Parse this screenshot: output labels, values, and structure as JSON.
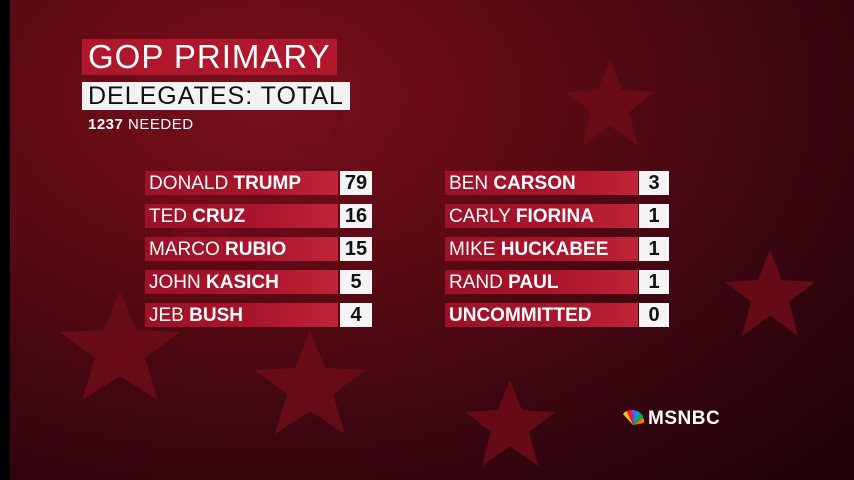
{
  "header": {
    "title": "GOP PRIMARY",
    "subtitle": "DELEGATES: TOTAL",
    "needed_number": "1237",
    "needed_label": "NEEDED"
  },
  "left_column": [
    {
      "first": "DONALD ",
      "last": "TRUMP",
      "delegates": "79"
    },
    {
      "first": "TED ",
      "last": "CRUZ",
      "delegates": "16"
    },
    {
      "first": "MARCO ",
      "last": "RUBIO",
      "delegates": "15"
    },
    {
      "first": "JOHN ",
      "last": "KASICH",
      "delegates": "5"
    },
    {
      "first": "JEB ",
      "last": "BUSH",
      "delegates": "4"
    }
  ],
  "right_column": [
    {
      "first": "BEN ",
      "last": "CARSON",
      "delegates": "3"
    },
    {
      "first": "CARLY ",
      "last": "FIORINA",
      "delegates": "1"
    },
    {
      "first": "MIKE ",
      "last": "HUCKABEE",
      "delegates": "1"
    },
    {
      "first": "RAND ",
      "last": "PAUL",
      "delegates": "1"
    },
    {
      "first": "",
      "last": "UNCOMMITTED",
      "delegates": "0"
    }
  ],
  "network": {
    "logo_text": "MSNBC",
    "icon": "peacock-icon"
  },
  "colors": {
    "accent_red": "#b0172c",
    "background": "#5a0a14",
    "box_white": "#f4f4f4"
  }
}
